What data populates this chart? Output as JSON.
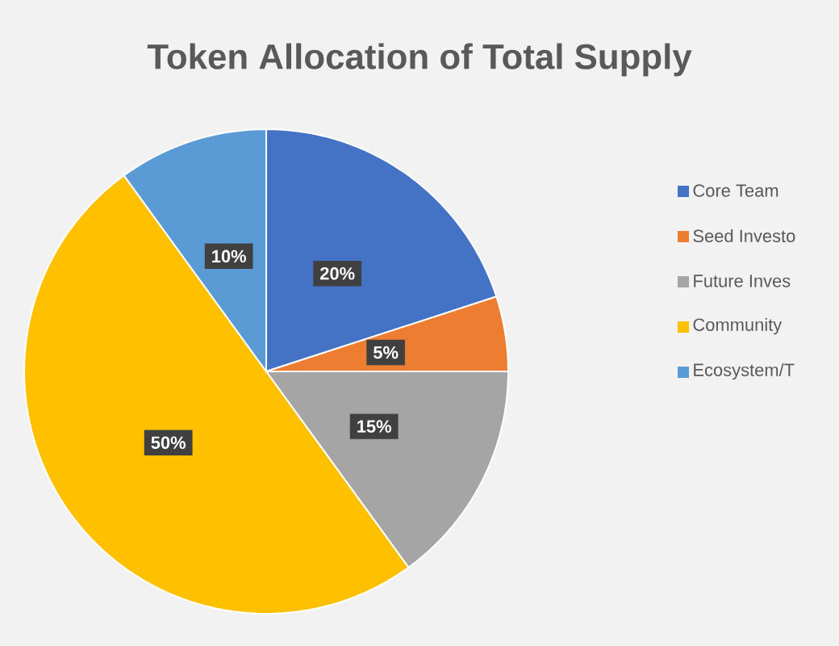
{
  "chart_data": {
    "type": "pie",
    "title": "Token Allocation of Total Supply",
    "categories": [
      "Core Team",
      "Seed Investo",
      "Future Inves",
      "Community",
      "Ecosystem/T"
    ],
    "values": [
      20,
      5,
      15,
      50,
      10
    ],
    "colors": [
      "#4472c4",
      "#ed7d31",
      "#a5a5a5",
      "#ffc000",
      "#5b9bd5"
    ],
    "value_labels": [
      "20%",
      "5%",
      "15%",
      "50%",
      "10%"
    ],
    "legend": "right"
  }
}
